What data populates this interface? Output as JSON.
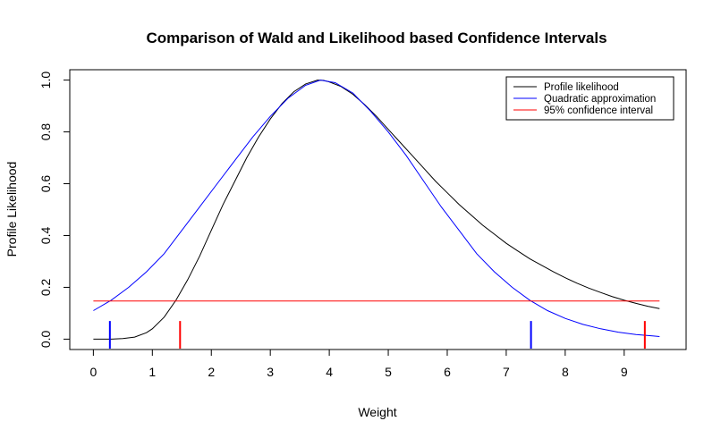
{
  "chart_data": {
    "type": "line",
    "title": "Comparison of Wald and Likelihood based Confidence Intervals",
    "xlabel": "Weight",
    "ylabel": "Profile Likelihood",
    "xlim": [
      -0.4,
      10.05
    ],
    "ylim": [
      -0.04,
      1.04
    ],
    "x_ticks": [
      "0",
      "1",
      "2",
      "3",
      "4",
      "5",
      "6",
      "7",
      "8",
      "9"
    ],
    "y_ticks": [
      "0.0",
      "0.2",
      "0.4",
      "0.6",
      "0.8",
      "1.0"
    ],
    "legend_position": "top-right",
    "grid": false,
    "series": [
      {
        "name": "Profile likelihood",
        "color": "#000000",
        "points": [
          [
            0,
            0.0
          ],
          [
            0.3,
            0.0
          ],
          [
            0.5,
            0.002
          ],
          [
            0.7,
            0.008
          ],
          [
            0.9,
            0.025
          ],
          [
            1.0,
            0.04
          ],
          [
            1.2,
            0.085
          ],
          [
            1.4,
            0.15
          ],
          [
            1.6,
            0.23
          ],
          [
            1.8,
            0.32
          ],
          [
            2.0,
            0.42
          ],
          [
            2.2,
            0.52
          ],
          [
            2.4,
            0.61
          ],
          [
            2.6,
            0.7
          ],
          [
            2.8,
            0.78
          ],
          [
            3.0,
            0.85
          ],
          [
            3.2,
            0.91
          ],
          [
            3.4,
            0.955
          ],
          [
            3.6,
            0.985
          ],
          [
            3.8,
            1.0
          ],
          [
            3.9,
            0.999
          ],
          [
            4.0,
            0.993
          ],
          [
            4.2,
            0.975
          ],
          [
            4.4,
            0.945
          ],
          [
            4.6,
            0.905
          ],
          [
            4.8,
            0.86
          ],
          [
            5.0,
            0.81
          ],
          [
            5.2,
            0.76
          ],
          [
            5.4,
            0.71
          ],
          [
            5.6,
            0.66
          ],
          [
            5.8,
            0.61
          ],
          [
            6.0,
            0.565
          ],
          [
            6.2,
            0.52
          ],
          [
            6.4,
            0.48
          ],
          [
            6.6,
            0.44
          ],
          [
            6.8,
            0.405
          ],
          [
            7.0,
            0.37
          ],
          [
            7.2,
            0.34
          ],
          [
            7.4,
            0.31
          ],
          [
            7.6,
            0.285
          ],
          [
            7.8,
            0.26
          ],
          [
            8.0,
            0.237
          ],
          [
            8.2,
            0.216
          ],
          [
            8.4,
            0.197
          ],
          [
            8.6,
            0.18
          ],
          [
            8.8,
            0.164
          ],
          [
            9.0,
            0.15
          ],
          [
            9.2,
            0.138
          ],
          [
            9.4,
            0.127
          ],
          [
            9.6,
            0.118
          ]
        ]
      },
      {
        "name": "Quadratic approximation",
        "color": "#0000ff",
        "points": [
          [
            0,
            0.11
          ],
          [
            0.3,
            0.15
          ],
          [
            0.6,
            0.2
          ],
          [
            0.9,
            0.26
          ],
          [
            1.2,
            0.33
          ],
          [
            1.5,
            0.42
          ],
          [
            1.8,
            0.51
          ],
          [
            2.1,
            0.6
          ],
          [
            2.4,
            0.69
          ],
          [
            2.7,
            0.78
          ],
          [
            3.0,
            0.86
          ],
          [
            3.3,
            0.93
          ],
          [
            3.6,
            0.98
          ],
          [
            3.85,
            1.0
          ],
          [
            4.1,
            0.99
          ],
          [
            4.4,
            0.95
          ],
          [
            4.7,
            0.88
          ],
          [
            5.0,
            0.8
          ],
          [
            5.3,
            0.71
          ],
          [
            5.6,
            0.61
          ],
          [
            5.9,
            0.51
          ],
          [
            6.2,
            0.42
          ],
          [
            6.5,
            0.33
          ],
          [
            6.8,
            0.26
          ],
          [
            7.1,
            0.2
          ],
          [
            7.4,
            0.15
          ],
          [
            7.7,
            0.11
          ],
          [
            8.0,
            0.08
          ],
          [
            8.3,
            0.057
          ],
          [
            8.6,
            0.04
          ],
          [
            8.9,
            0.027
          ],
          [
            9.2,
            0.018
          ],
          [
            9.5,
            0.012
          ],
          [
            9.6,
            0.01
          ]
        ]
      },
      {
        "name": "95% confidence interval",
        "color": "#ff0000",
        "points": [
          [
            0,
            0.147
          ],
          [
            9.6,
            0.147
          ]
        ]
      }
    ],
    "interval_markers": [
      {
        "series": "Quadratic approximation",
        "color": "#0000ff",
        "x": [
          0.28,
          7.42
        ]
      },
      {
        "series": "Profile likelihood",
        "color": "#ff0000",
        "x": [
          1.47,
          9.35
        ]
      }
    ]
  }
}
